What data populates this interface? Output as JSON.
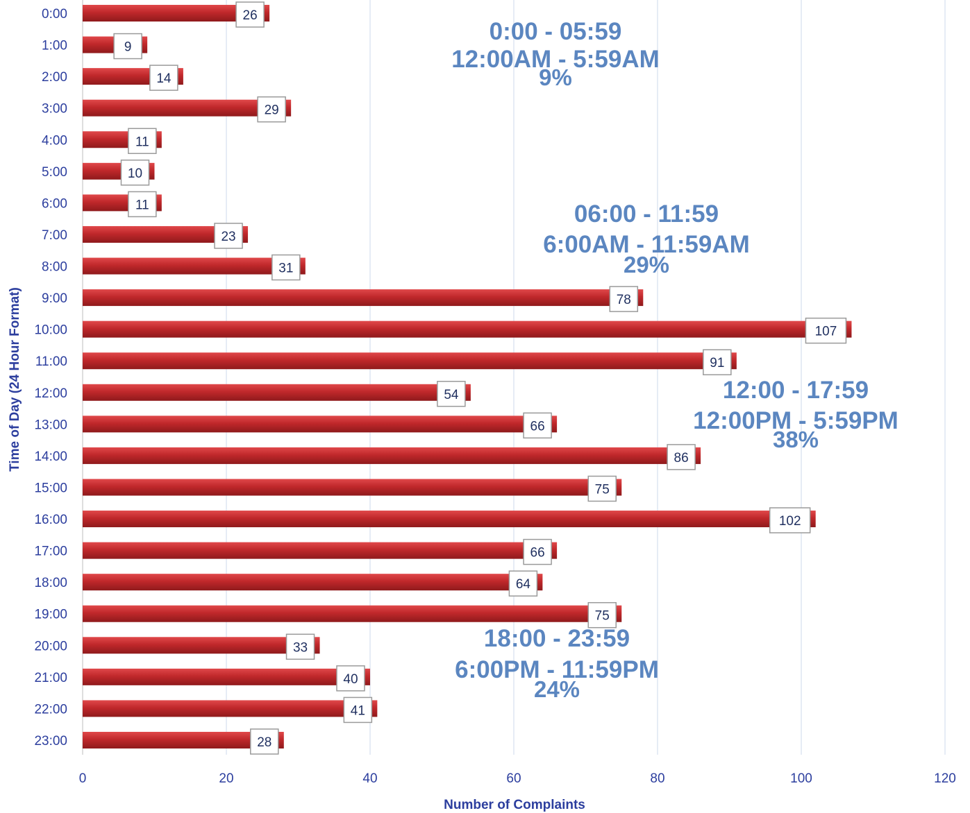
{
  "chart_data": {
    "type": "bar",
    "orientation": "horizontal",
    "categories": [
      "0:00",
      "1:00",
      "2:00",
      "3:00",
      "4:00",
      "5:00",
      "6:00",
      "7:00",
      "8:00",
      "9:00",
      "10:00",
      "11:00",
      "12:00",
      "13:00",
      "14:00",
      "15:00",
      "16:00",
      "17:00",
      "18:00",
      "19:00",
      "20:00",
      "21:00",
      "22:00",
      "23:00"
    ],
    "values": [
      26,
      9,
      14,
      29,
      11,
      10,
      11,
      23,
      31,
      78,
      107,
      91,
      54,
      66,
      86,
      75,
      102,
      66,
      64,
      75,
      33,
      40,
      41,
      28
    ],
    "xlabel": "Number of Complaints",
    "ylabel": "Time of Day (24 Hour Format)",
    "xlim": [
      0,
      120
    ],
    "xticks": [
      "0",
      "20",
      "40",
      "60",
      "80",
      "100",
      "120"
    ],
    "grid": "vertical",
    "legend": "none",
    "bar_color": "#c0282b",
    "annotations": [
      {
        "lines": [
          "0:00 - 05:59",
          "12:00AM - 5:59AM",
          "9%"
        ]
      },
      {
        "lines": [
          "06:00 - 11:59",
          "6:00AM - 11:59AM",
          "29%"
        ]
      },
      {
        "lines": [
          "12:00 - 17:59",
          "12:00PM - 5:59PM",
          "38%"
        ]
      },
      {
        "lines": [
          "18:00 - 23:59",
          "6:00PM - 11:59PM",
          "24%"
        ]
      }
    ]
  }
}
